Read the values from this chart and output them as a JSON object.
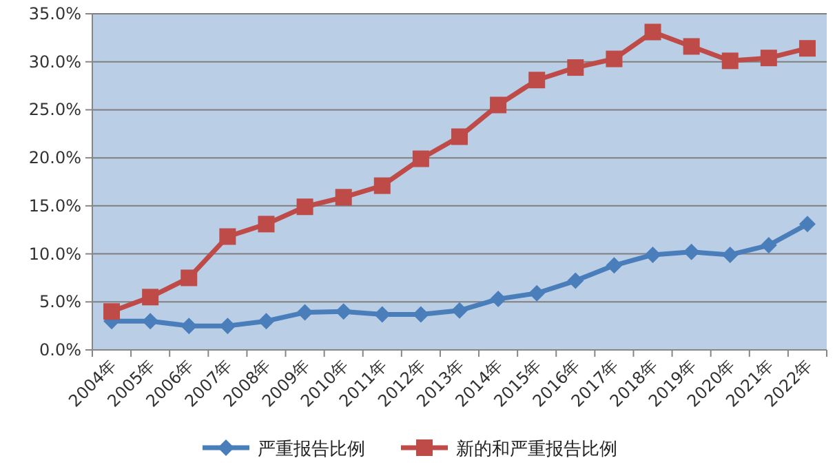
{
  "chart_data": {
    "type": "line",
    "categories": [
      "2004年",
      "2005年",
      "2006年",
      "2007年",
      "2008年",
      "2009年",
      "2010年",
      "2011年",
      "2012年",
      "2013年",
      "2014年",
      "2015年",
      "2016年",
      "2017年",
      "2018年",
      "2019年",
      "2020年",
      "2021年",
      "2022年"
    ],
    "series": [
      {
        "name": "严重报告比例",
        "color": "#4a7ebb",
        "marker": "diamond",
        "values": [
          3.0,
          3.0,
          2.5,
          2.5,
          3.0,
          3.9,
          4.0,
          3.7,
          3.7,
          4.1,
          5.3,
          5.9,
          7.2,
          8.8,
          9.9,
          10.2,
          9.9,
          10.9,
          13.1
        ]
      },
      {
        "name": "新的和严重报告比例",
        "color": "#be4b48",
        "marker": "square",
        "values": [
          4.0,
          5.5,
          7.5,
          11.8,
          13.1,
          14.9,
          15.9,
          17.1,
          19.9,
          22.2,
          25.5,
          28.1,
          29.4,
          30.3,
          33.1,
          31.6,
          30.1,
          30.4,
          31.4
        ]
      }
    ],
    "ylim": [
      0,
      35
    ],
    "yticks": [
      {
        "value": 0,
        "label": "0.0%"
      },
      {
        "value": 5,
        "label": "5.0%"
      },
      {
        "value": 10,
        "label": "10.0%"
      },
      {
        "value": 15,
        "label": "15.0%"
      },
      {
        "value": 20,
        "label": "20.0%"
      },
      {
        "value": 25,
        "label": "25.0%"
      },
      {
        "value": 30,
        "label": "30.0%"
      },
      {
        "value": 35,
        "label": "35.0%"
      }
    ],
    "grid": "y",
    "legend": "bottom",
    "line_style": "solid"
  }
}
